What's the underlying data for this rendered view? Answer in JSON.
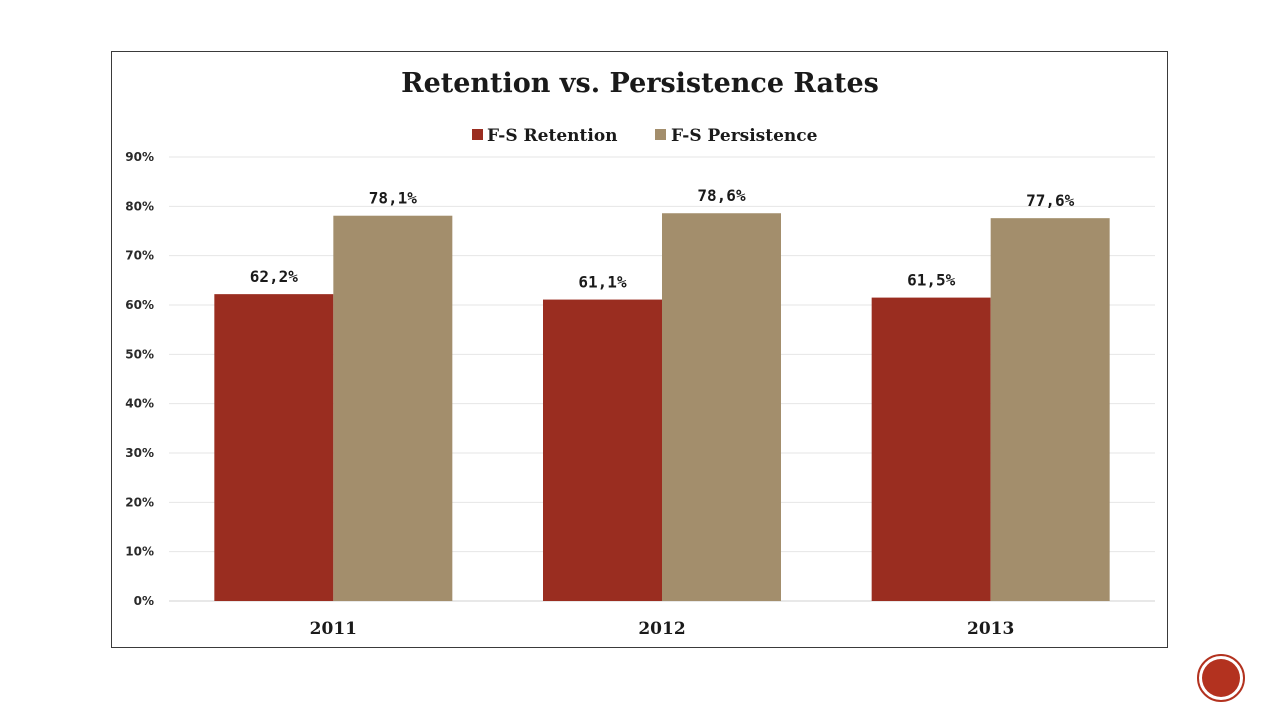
{
  "colors": {
    "retention": "#9a2d20",
    "persistence": "#a38e6c",
    "gridline": "#e6e6e6",
    "badge": "#b3321f"
  },
  "badge_icon": "circle-badge-icon",
  "chart_data": {
    "type": "bar",
    "title": "Retention vs. Persistence Rates",
    "xlabel": "",
    "ylabel": "",
    "categories": [
      "2011",
      "2012",
      "2013"
    ],
    "series": [
      {
        "name": "F-S Retention",
        "values": [
          62.2,
          61.1,
          61.5
        ],
        "labels": [
          "62,2%",
          "61,1%",
          "61,5%"
        ]
      },
      {
        "name": "F-S Persistence",
        "values": [
          78.1,
          78.6,
          77.6
        ],
        "labels": [
          "78,1%",
          "78,6%",
          "77,6%"
        ]
      }
    ],
    "ylim": [
      0,
      90
    ],
    "yticks": [
      "0%",
      "10%",
      "20%",
      "30%",
      "40%",
      "50%",
      "60%",
      "70%",
      "80%",
      "90%"
    ],
    "grid": true,
    "legend_position": "top"
  }
}
